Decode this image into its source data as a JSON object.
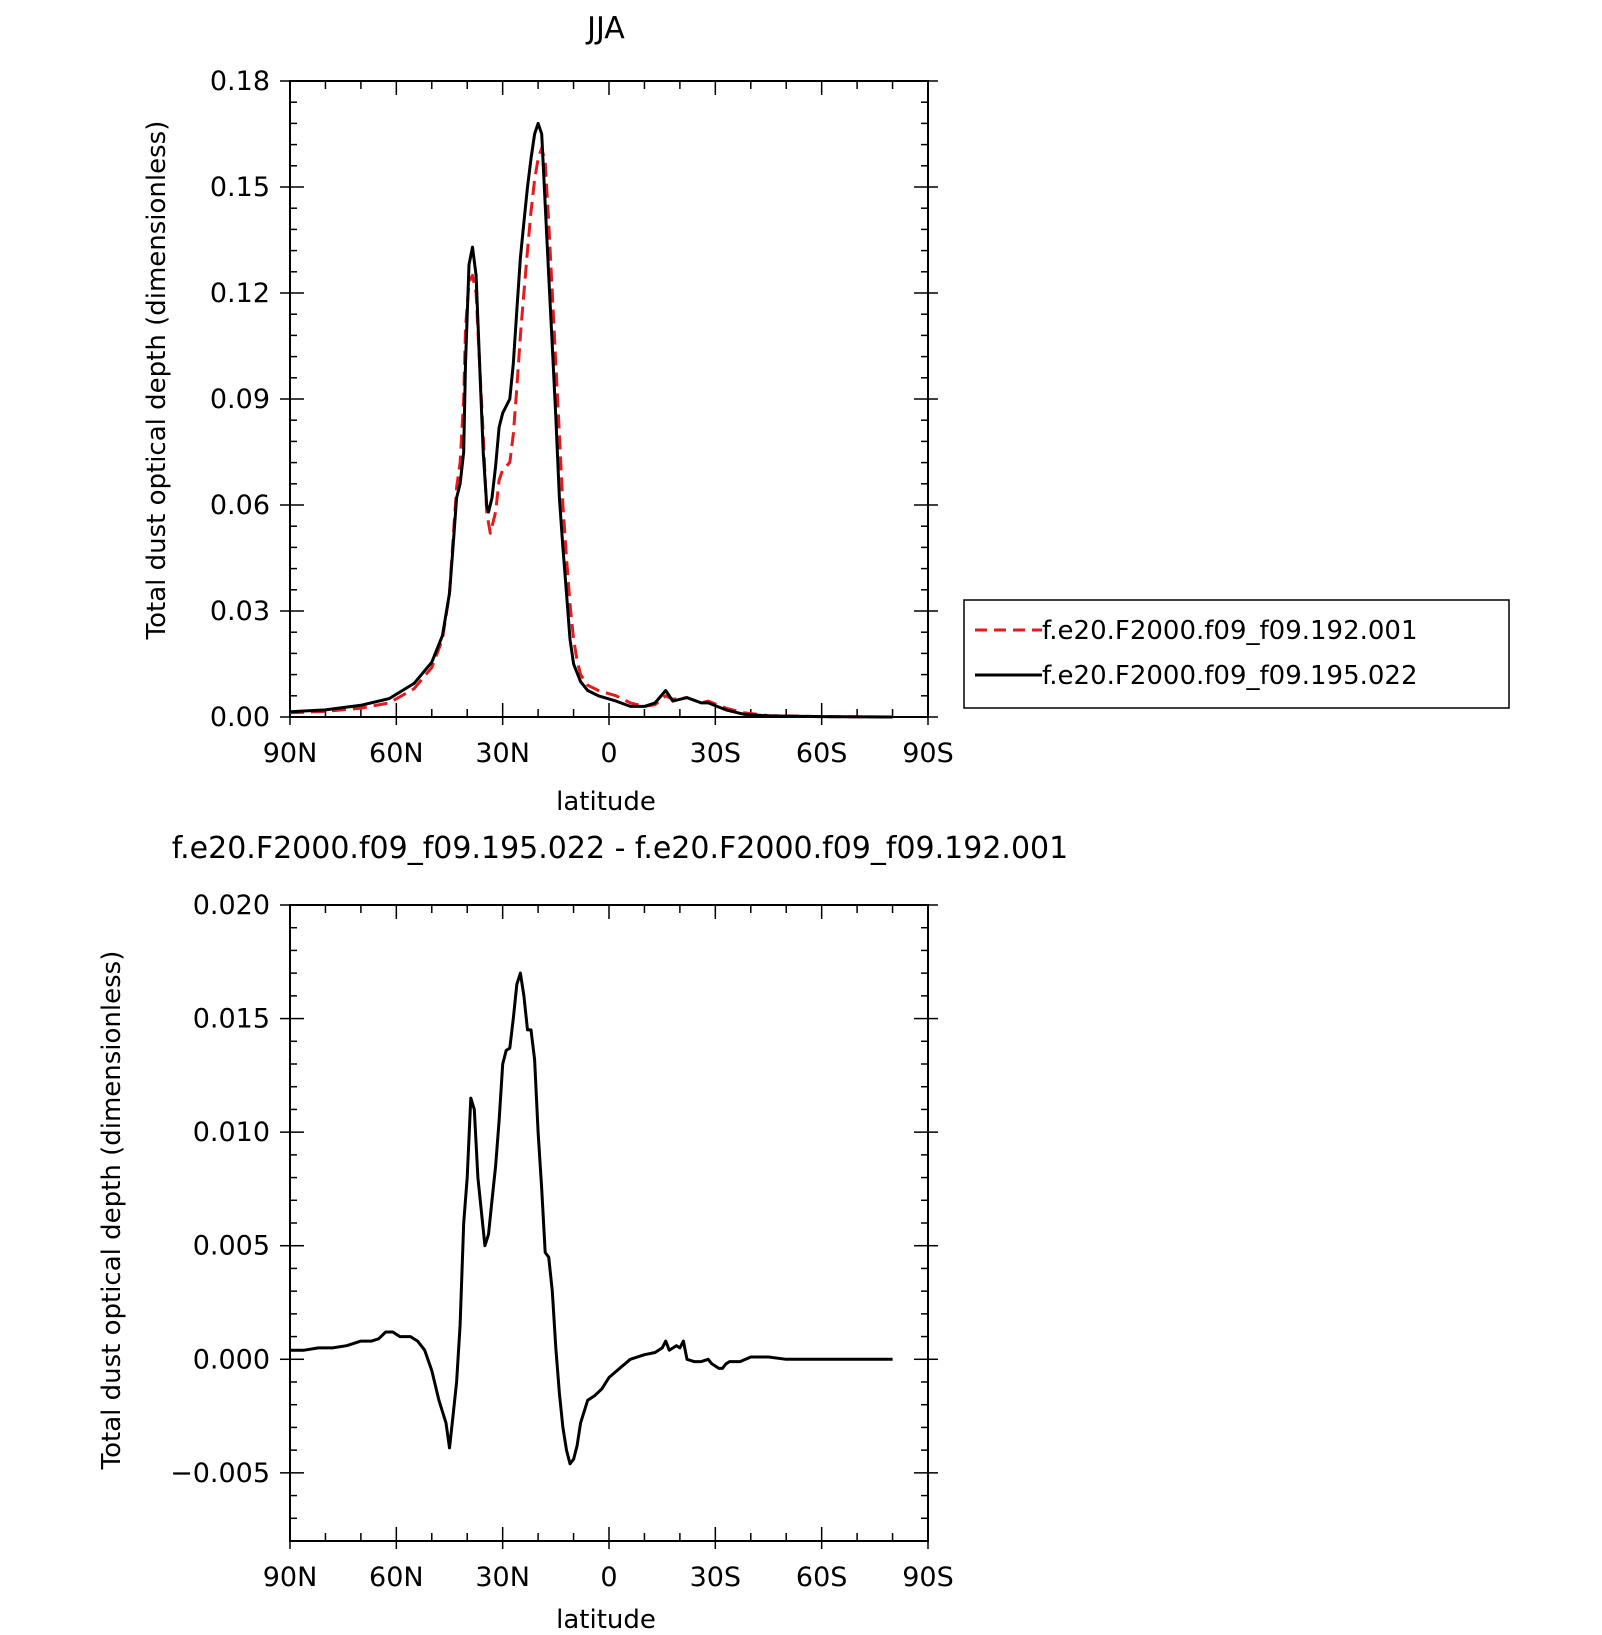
{
  "chart_data": [
    {
      "type": "line",
      "title": "JJA",
      "xlabel": "latitude",
      "ylabel": "Total dust optical depth (dimensionless)",
      "x_axis": "latitude in degrees, north positive; axis runs from 90N on the left to 90S on the right",
      "xlim": [
        90,
        -90
      ],
      "ylim": [
        0,
        0.18
      ],
      "x_ticks": [
        90,
        60,
        30,
        0,
        -30,
        -60,
        -90
      ],
      "x_tick_labels": [
        "90N",
        "60N",
        "30N",
        "0",
        "30S",
        "60S",
        "90S"
      ],
      "y_ticks": [
        0,
        0.03,
        0.06,
        0.09,
        0.12,
        0.15,
        0.18
      ],
      "y_tick_labels": [
        "0.00",
        "0.03",
        "0.06",
        "0.09",
        "0.12",
        "0.15",
        "0.18"
      ],
      "legend_position": "right",
      "series": [
        {
          "name": "f.e20.F2000.f09_f09.192.001",
          "color": "#e41a1c",
          "dash": "dashed",
          "points": [
            [
              90,
              0.0012
            ],
            [
              80,
              0.0016
            ],
            [
              70,
              0.0025
            ],
            [
              62,
              0.004
            ],
            [
              55,
              0.008
            ],
            [
              50,
              0.014
            ],
            [
              47,
              0.022
            ],
            [
              45,
              0.035
            ],
            [
              44,
              0.05
            ],
            [
              43,
              0.065
            ],
            [
              42,
              0.072
            ],
            [
              41,
              0.09
            ],
            [
              40.5,
              0.11
            ],
            [
              39.5,
              0.123
            ],
            [
              38.5,
              0.125
            ],
            [
              37.5,
              0.12
            ],
            [
              36.5,
              0.1
            ],
            [
              35.5,
              0.08
            ],
            [
              34.5,
              0.058
            ],
            [
              33.5,
              0.052
            ],
            [
              32,
              0.058
            ],
            [
              31,
              0.067
            ],
            [
              30,
              0.07
            ],
            [
              28,
              0.072
            ],
            [
              27,
              0.08
            ],
            [
              26,
              0.093
            ],
            [
              25,
              0.108
            ],
            [
              24,
              0.12
            ],
            [
              23,
              0.132
            ],
            [
              22,
              0.143
            ],
            [
              21,
              0.152
            ],
            [
              20,
              0.158
            ],
            [
              19,
              0.161
            ],
            [
              18,
              0.157
            ],
            [
              17,
              0.14
            ],
            [
              16,
              0.12
            ],
            [
              15,
              0.1
            ],
            [
              14,
              0.08
            ],
            [
              13,
              0.06
            ],
            [
              12,
              0.045
            ],
            [
              11,
              0.032
            ],
            [
              10,
              0.022
            ],
            [
              9,
              0.016
            ],
            [
              8,
              0.012
            ],
            [
              6,
              0.009
            ],
            [
              3,
              0.0075
            ],
            [
              -2,
              0.006
            ],
            [
              -6,
              0.004
            ],
            [
              -10,
              0.003
            ],
            [
              -13,
              0.0035
            ],
            [
              -16,
              0.006
            ],
            [
              -18,
              0.005
            ],
            [
              -22,
              0.0055
            ],
            [
              -26,
              0.004
            ],
            [
              -28,
              0.0045
            ],
            [
              -33,
              0.0025
            ],
            [
              -38,
              0.0012
            ],
            [
              -45,
              0.0004
            ],
            [
              -60,
              0.0001
            ],
            [
              -80,
              0.0
            ]
          ]
        },
        {
          "name": "f.e20.F2000.f09_f09.195.022",
          "color": "#000000",
          "dash": "solid",
          "points": [
            [
              90,
              0.0015
            ],
            [
              80,
              0.002
            ],
            [
              70,
              0.0033
            ],
            [
              62,
              0.0052
            ],
            [
              55,
              0.0095
            ],
            [
              50,
              0.0155
            ],
            [
              47,
              0.023
            ],
            [
              45,
              0.035
            ],
            [
              44,
              0.048
            ],
            [
              43,
              0.062
            ],
            [
              42,
              0.066
            ],
            [
              41,
              0.075
            ],
            [
              40.5,
              0.1
            ],
            [
              39.5,
              0.128
            ],
            [
              38.5,
              0.133
            ],
            [
              37.5,
              0.125
            ],
            [
              36.5,
              0.1
            ],
            [
              35.5,
              0.075
            ],
            [
              34.5,
              0.06
            ],
            [
              34,
              0.058
            ],
            [
              33,
              0.062
            ],
            [
              32,
              0.071
            ],
            [
              31,
              0.082
            ],
            [
              30,
              0.086
            ],
            [
              28,
              0.09
            ],
            [
              27,
              0.1
            ],
            [
              26,
              0.115
            ],
            [
              25,
              0.13
            ],
            [
              24,
              0.14
            ],
            [
              23,
              0.15
            ],
            [
              22,
              0.158
            ],
            [
              21,
              0.165
            ],
            [
              20,
              0.168
            ],
            [
              19,
              0.165
            ],
            [
              18,
              0.145
            ],
            [
              17,
              0.125
            ],
            [
              16,
              0.105
            ],
            [
              15,
              0.085
            ],
            [
              14,
              0.062
            ],
            [
              13,
              0.048
            ],
            [
              12,
              0.035
            ],
            [
              11,
              0.022
            ],
            [
              10,
              0.015
            ],
            [
              8,
              0.01
            ],
            [
              6,
              0.0075
            ],
            [
              3,
              0.006
            ],
            [
              -2,
              0.0045
            ],
            [
              -6,
              0.003
            ],
            [
              -10,
              0.003
            ],
            [
              -13,
              0.004
            ],
            [
              -16,
              0.0075
            ],
            [
              -18,
              0.0045
            ],
            [
              -22,
              0.0055
            ],
            [
              -26,
              0.004
            ],
            [
              -28,
              0.004
            ],
            [
              -33,
              0.002
            ],
            [
              -38,
              0.0008
            ],
            [
              -45,
              0.0003
            ],
            [
              -60,
              0.0001
            ],
            [
              -80,
              0.0
            ]
          ]
        }
      ]
    },
    {
      "type": "line",
      "title": "f.e20.F2000.f09_f09.195.022 - f.e20.F2000.f09_f09.192.001",
      "xlabel": "latitude",
      "ylabel": "Total dust optical depth (dimensionless)",
      "x_axis": "latitude in degrees, north positive; axis runs from 90N on the left to 90S on the right",
      "xlim": [
        90,
        -90
      ],
      "ylim": [
        -0.008,
        0.02
      ],
      "x_ticks": [
        90,
        60,
        30,
        0,
        -30,
        -60,
        -90
      ],
      "x_tick_labels": [
        "90N",
        "60N",
        "30N",
        "0",
        "30S",
        "60S",
        "90S"
      ],
      "y_ticks": [
        -0.005,
        0.0,
        0.005,
        0.01,
        0.015,
        0.02
      ],
      "y_tick_labels": [
        "−0.005",
        "0.000",
        "0.005",
        "0.010",
        "0.015",
        "0.020"
      ],
      "series": [
        {
          "color": "#000000",
          "dash": "solid",
          "points": [
            [
              90,
              0.0004
            ],
            [
              86,
              0.0004
            ],
            [
              82,
              0.0005
            ],
            [
              78,
              0.0005
            ],
            [
              74,
              0.0006
            ],
            [
              70,
              0.0008
            ],
            [
              67,
              0.0008
            ],
            [
              65,
              0.0009
            ],
            [
              63,
              0.0012
            ],
            [
              61,
              0.0012
            ],
            [
              59,
              0.001
            ],
            [
              56,
              0.001
            ],
            [
              54,
              0.0008
            ],
            [
              52,
              0.0004
            ],
            [
              50,
              -0.0005
            ],
            [
              48,
              -0.0018
            ],
            [
              46,
              -0.0028
            ],
            [
              45,
              -0.0039
            ],
            [
              44,
              -0.0025
            ],
            [
              43,
              -0.001
            ],
            [
              42,
              0.0015
            ],
            [
              41,
              0.006
            ],
            [
              40,
              0.008
            ],
            [
              39,
              0.0115
            ],
            [
              38,
              0.011
            ],
            [
              37,
              0.008
            ],
            [
              36,
              0.0065
            ],
            [
              35,
              0.005
            ],
            [
              34,
              0.0055
            ],
            [
              33,
              0.007
            ],
            [
              32,
              0.0085
            ],
            [
              31,
              0.0105
            ],
            [
              30,
              0.013
            ],
            [
              29,
              0.0136
            ],
            [
              28,
              0.0137
            ],
            [
              27,
              0.015
            ],
            [
              26,
              0.0165
            ],
            [
              25,
              0.017
            ],
            [
              24,
              0.016
            ],
            [
              23,
              0.0145
            ],
            [
              22,
              0.0145
            ],
            [
              21,
              0.0132
            ],
            [
              20,
              0.01
            ],
            [
              19,
              0.0075
            ],
            [
              18,
              0.0047
            ],
            [
              17,
              0.0045
            ],
            [
              16,
              0.003
            ],
            [
              15,
              0.0005
            ],
            [
              14,
              -0.0015
            ],
            [
              13,
              -0.003
            ],
            [
              12,
              -0.004
            ],
            [
              11,
              -0.0046
            ],
            [
              10,
              -0.0044
            ],
            [
              9,
              -0.0038
            ],
            [
              8,
              -0.0028
            ],
            [
              6,
              -0.0018
            ],
            [
              4,
              -0.0016
            ],
            [
              2,
              -0.0013
            ],
            [
              0,
              -0.0008
            ],
            [
              -3,
              -0.0004
            ],
            [
              -6,
              0.0
            ],
            [
              -10,
              0.0002
            ],
            [
              -13,
              0.0003
            ],
            [
              -15,
              0.0005
            ],
            [
              -16,
              0.0008
            ],
            [
              -17,
              0.0004
            ],
            [
              -19,
              0.0006
            ],
            [
              -20,
              0.0005
            ],
            [
              -21,
              0.0008
            ],
            [
              -22,
              0.0
            ],
            [
              -24,
              -0.0001
            ],
            [
              -26,
              -0.0001
            ],
            [
              -28,
              0.0
            ],
            [
              -29,
              -0.0002
            ],
            [
              -31,
              -0.0004
            ],
            [
              -32,
              -0.0004
            ],
            [
              -33,
              -0.0002
            ],
            [
              -34,
              -0.0001
            ],
            [
              -37,
              -0.0001
            ],
            [
              -40,
              0.0001
            ],
            [
              -45,
              0.0001
            ],
            [
              -50,
              0.0
            ],
            [
              -60,
              0.0
            ],
            [
              -70,
              0.0
            ],
            [
              -80,
              0.0
            ]
          ]
        }
      ]
    }
  ]
}
